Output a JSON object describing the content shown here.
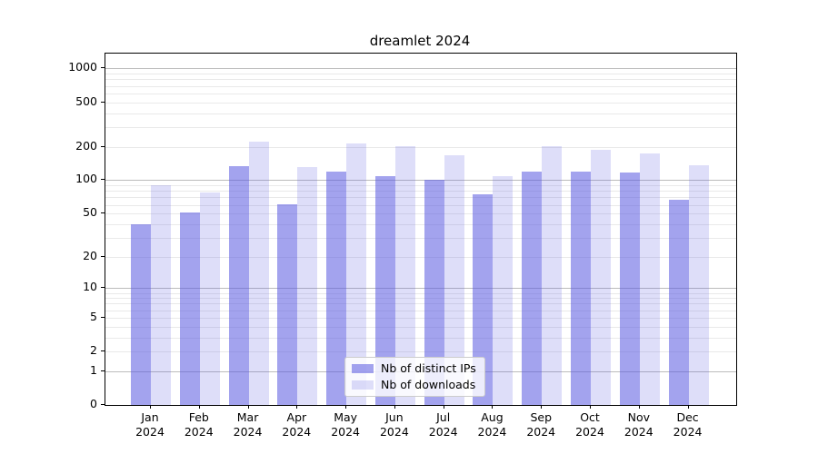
{
  "chart_data": {
    "type": "bar",
    "title": "dreamlet 2024",
    "categories": [
      {
        "month": "Jan",
        "year": "2024"
      },
      {
        "month": "Feb",
        "year": "2024"
      },
      {
        "month": "Mar",
        "year": "2024"
      },
      {
        "month": "Apr",
        "year": "2024"
      },
      {
        "month": "May",
        "year": "2024"
      },
      {
        "month": "Jun",
        "year": "2024"
      },
      {
        "month": "Jul",
        "year": "2024"
      },
      {
        "month": "Aug",
        "year": "2024"
      },
      {
        "month": "Sep",
        "year": "2024"
      },
      {
        "month": "Oct",
        "year": "2024"
      },
      {
        "month": "Nov",
        "year": "2024"
      },
      {
        "month": "Dec",
        "year": "2024"
      }
    ],
    "series": [
      {
        "name": "Nb of distinct IPs",
        "color": "rgba(88,88,224,0.55)",
        "values": [
          40,
          51,
          135,
          61,
          120,
          108,
          100,
          74,
          120,
          120,
          118,
          67
        ]
      },
      {
        "name": "Nb of downloads",
        "color": "rgba(88,88,224,0.2)",
        "values": [
          90,
          77,
          221,
          132,
          214,
          203,
          167,
          108,
          204,
          188,
          175,
          137
        ]
      }
    ],
    "yscale": "log1p",
    "ylim": [
      0,
      1360
    ],
    "yticks": [
      0,
      1,
      2,
      5,
      10,
      20,
      50,
      100,
      200,
      500,
      1000
    ],
    "major_grid_values": [
      1,
      10,
      100,
      1000
    ],
    "minor_grid_values": [
      2,
      3,
      4,
      5,
      6,
      7,
      8,
      9,
      20,
      30,
      40,
      50,
      60,
      70,
      80,
      90,
      200,
      300,
      400,
      500,
      600,
      700,
      800,
      900
    ],
    "grid": true,
    "legend_position": "lower center",
    "xlabel": "",
    "ylabel": ""
  },
  "colors": {
    "major_grid": "#bcbcbc",
    "minor_grid": "#e9e9e9",
    "axis": "#000000",
    "legend_border": "#cccccc"
  }
}
